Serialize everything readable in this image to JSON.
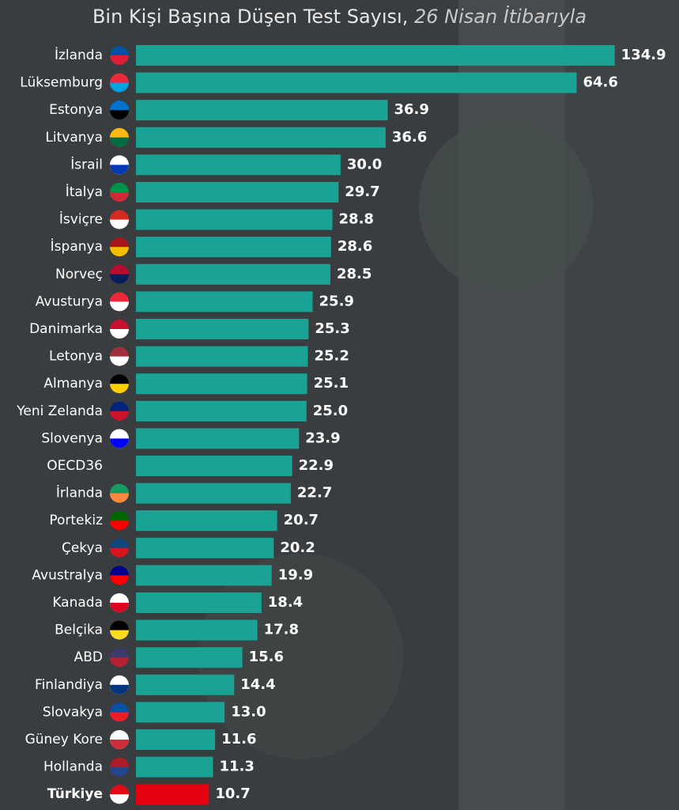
{
  "chart_data": {
    "type": "bar",
    "orientation": "horizontal",
    "title": "Bin Kişi Başına Düşen Test Sayısı,",
    "subtitle": "26 Nisan İtibarıyla",
    "categories": [
      "İzlanda",
      "Lüksemburg",
      "Estonya",
      "Litvanya",
      "İsrail",
      "İtalya",
      "İsviçre",
      "İspanya",
      "Norveç",
      "Avusturya",
      "Danimarka",
      "Letonya",
      "Almanya",
      "Yeni Zelanda",
      "Slovenya",
      "OECD36",
      "İrlanda",
      "Portekiz",
      "Çekya",
      "Avustralya",
      "Kanada",
      "Belçika",
      "ABD",
      "Finlandiya",
      "Slovakya",
      "Güney Kore",
      "Hollanda",
      "Türkiye"
    ],
    "values": [
      134.9,
      64.6,
      36.9,
      36.6,
      30.0,
      29.7,
      28.8,
      28.6,
      28.5,
      25.9,
      25.3,
      25.2,
      25.1,
      25.0,
      23.9,
      22.9,
      22.7,
      20.7,
      20.2,
      19.9,
      18.4,
      17.8,
      15.6,
      14.4,
      13.0,
      11.6,
      11.3,
      10.7
    ],
    "value_labels": [
      "134.9",
      "64.6",
      "36.9",
      "36.6",
      "30.0",
      "29.7",
      "28.8",
      "28.6",
      "28.5",
      "25.9",
      "25.3",
      "25.2",
      "25.1",
      "25.0",
      "23.9",
      "22.9",
      "22.7",
      "20.7",
      "20.2",
      "19.9",
      "18.4",
      "17.8",
      "15.6",
      "14.4",
      "13.0",
      "11.6",
      "11.3",
      "10.7"
    ],
    "colors": [
      "#1aa394",
      "#1aa394",
      "#1aa394",
      "#1aa394",
      "#1aa394",
      "#1aa394",
      "#1aa394",
      "#1aa394",
      "#1aa394",
      "#1aa394",
      "#1aa394",
      "#1aa394",
      "#1aa394",
      "#1aa394",
      "#1aa394",
      "#1aa394",
      "#1aa394",
      "#1aa394",
      "#1aa394",
      "#1aa394",
      "#1aa394",
      "#1aa394",
      "#1aa394",
      "#1aa394",
      "#1aa394",
      "#1aa394",
      "#1aa394",
      "#e3000f"
    ]
  }
}
